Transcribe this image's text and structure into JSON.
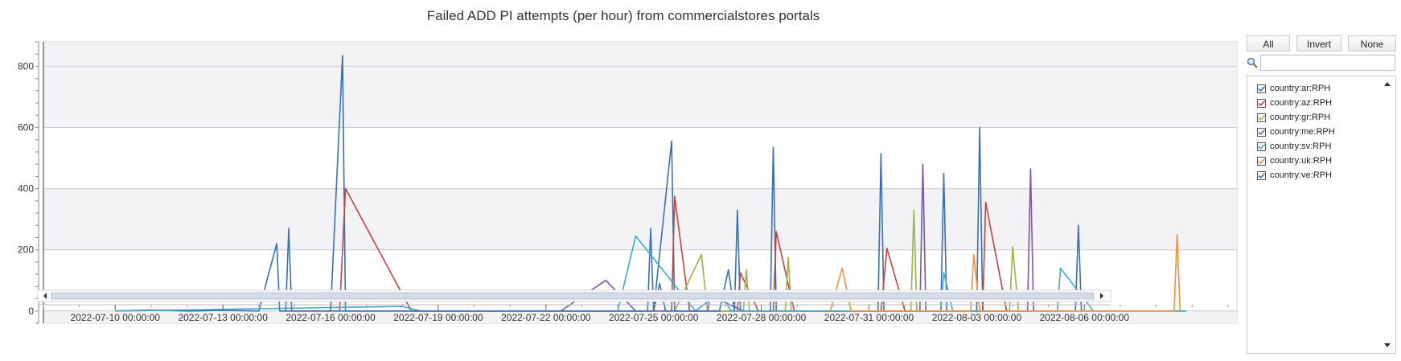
{
  "chart_data": {
    "type": "line",
    "title": "Failed ADD PI attempts (per hour) from commercialstores portals",
    "xlabel": "",
    "ylabel": "",
    "ylim": [
      -40,
      880
    ],
    "y_ticks": [
      0,
      200,
      400,
      600,
      800
    ],
    "x_range": [
      "2022-07-08 00:00:00",
      "2022-08-10 06:00:00"
    ],
    "x_tick_labels": [
      "2022-07-10 00:00:00",
      "2022-07-13 00:00:00",
      "2022-07-16 00:00:00",
      "2022-07-19 00:00:00",
      "2022-07-22 00:00:00",
      "2022-07-25 00:00:00",
      "2022-07-28 00:00:00",
      "2022-07-31 00:00:00",
      "2022-08-03 00:00:00",
      "2022-08-06 00:00:00"
    ],
    "grid": true,
    "legend_position": "right",
    "series": [
      {
        "name": "country:ar:RPH",
        "color": "#3a6fb4",
        "points": [
          [
            "2022-07-10 00:00",
            0
          ],
          [
            "2022-07-11 00:00",
            3
          ],
          [
            "2022-07-12 00:00",
            0
          ],
          [
            "2022-07-13 00:00",
            2
          ],
          [
            "2022-07-14 00:00",
            0
          ],
          [
            "2022-07-14 12:00",
            220
          ],
          [
            "2022-07-14 14:00",
            0
          ],
          [
            "2022-07-16 00:00",
            0
          ],
          [
            "2022-07-16 08:00",
            835
          ],
          [
            "2022-07-16 10:00",
            0
          ],
          [
            "2022-07-24 20:00",
            0
          ],
          [
            "2022-07-24 22:00",
            270
          ],
          [
            "2022-07-25 00:00",
            0
          ],
          [
            "2022-07-25 12:00",
            555
          ],
          [
            "2022-07-25 14:00",
            0
          ],
          [
            "2022-07-27 06:00",
            0
          ],
          [
            "2022-07-27 08:00",
            330
          ],
          [
            "2022-07-27 10:00",
            0
          ],
          [
            "2022-07-28 06:00",
            0
          ],
          [
            "2022-07-28 08:00",
            535
          ],
          [
            "2022-07-28 10:00",
            0
          ],
          [
            "2022-07-31 06:00",
            0
          ],
          [
            "2022-07-31 08:00",
            515
          ],
          [
            "2022-07-31 10:00",
            0
          ],
          [
            "2022-08-02 00:00",
            0
          ],
          [
            "2022-08-02 02:00",
            450
          ],
          [
            "2022-08-02 04:00",
            0
          ],
          [
            "2022-08-03 00:00",
            0
          ],
          [
            "2022-08-03 02:00",
            600
          ],
          [
            "2022-08-03 04:00",
            0
          ],
          [
            "2022-08-05 18:00",
            0
          ],
          [
            "2022-08-05 20:00",
            280
          ],
          [
            "2022-08-05 22:00",
            0
          ],
          [
            "2022-08-08 20:00",
            0
          ]
        ]
      },
      {
        "name": "country:az:RPH",
        "color": "#c9403f",
        "points": [
          [
            "2022-07-16 06:00",
            0
          ],
          [
            "2022-07-16 10:00",
            400
          ],
          [
            "2022-07-18 06:00",
            0
          ],
          [
            "2022-07-25 12:00",
            0
          ],
          [
            "2022-07-25 14:00",
            375
          ],
          [
            "2022-07-26 00:00",
            0
          ],
          [
            "2022-07-27 08:00",
            0
          ],
          [
            "2022-07-27 10:00",
            125
          ],
          [
            "2022-07-27 22:00",
            0
          ],
          [
            "2022-07-28 08:00",
            0
          ],
          [
            "2022-07-28 10:00",
            260
          ],
          [
            "2022-07-28 22:00",
            0
          ],
          [
            "2022-07-31 08:00",
            0
          ],
          [
            "2022-07-31 12:00",
            205
          ],
          [
            "2022-08-01 00:00",
            0
          ],
          [
            "2022-08-03 04:00",
            0
          ],
          [
            "2022-08-03 06:00",
            355
          ],
          [
            "2022-08-03 20:00",
            0
          ]
        ]
      },
      {
        "name": "country:gr:RPH",
        "color": "#93b54a",
        "points": [
          [
            "2022-07-25 14:00",
            0
          ],
          [
            "2022-07-26 08:00",
            185
          ],
          [
            "2022-07-26 12:00",
            0
          ],
          [
            "2022-07-27 12:00",
            0
          ],
          [
            "2022-07-27 14:00",
            135
          ],
          [
            "2022-07-27 16:00",
            0
          ],
          [
            "2022-07-28 16:00",
            0
          ],
          [
            "2022-07-28 18:00",
            175
          ],
          [
            "2022-07-28 20:00",
            0
          ],
          [
            "2022-08-01 04:00",
            0
          ],
          [
            "2022-08-01 06:00",
            330
          ],
          [
            "2022-08-01 08:00",
            0
          ],
          [
            "2022-08-03 22:00",
            0
          ],
          [
            "2022-08-04 00:00",
            210
          ],
          [
            "2022-08-04 04:00",
            0
          ]
        ]
      },
      {
        "name": "country:me:RPH",
        "color": "#7b57a5",
        "points": [
          [
            "2022-07-22 10:00",
            0
          ],
          [
            "2022-07-23 16:00",
            100
          ],
          [
            "2022-07-24 12:00",
            0
          ],
          [
            "2022-07-26 12:00",
            0
          ],
          [
            "2022-07-26 14:00",
            50
          ],
          [
            "2022-07-27 12:00",
            0
          ],
          [
            "2022-08-01 10:00",
            0
          ],
          [
            "2022-08-01 12:00",
            480
          ],
          [
            "2022-08-01 14:00",
            0
          ],
          [
            "2022-08-04 10:00",
            0
          ],
          [
            "2022-08-04 12:00",
            465
          ],
          [
            "2022-08-04 14:00",
            0
          ]
        ]
      },
      {
        "name": "country:sv:RPH",
        "color": "#3fa9c9",
        "points": [
          [
            "2022-07-10 00:00",
            0
          ],
          [
            "2022-07-18 00:00",
            15
          ],
          [
            "2022-07-18 12:00",
            0
          ],
          [
            "2022-07-24 00:00",
            0
          ],
          [
            "2022-07-24 12:00",
            245
          ],
          [
            "2022-07-26 04:00",
            0
          ],
          [
            "2022-07-26 20:00",
            60
          ],
          [
            "2022-07-27 04:00",
            0
          ],
          [
            "2022-08-02 00:00",
            0
          ],
          [
            "2022-08-02 02:00",
            125
          ],
          [
            "2022-08-02 08:00",
            0
          ],
          [
            "2022-08-05 06:00",
            0
          ],
          [
            "2022-08-05 08:00",
            140
          ],
          [
            "2022-08-06 06:00",
            0
          ],
          [
            "2022-08-08 20:00",
            0
          ]
        ]
      },
      {
        "name": "country:uk:RPH",
        "color": "#f0913d",
        "points": [
          [
            "2022-07-29 22:00",
            0
          ],
          [
            "2022-07-30 06:00",
            140
          ],
          [
            "2022-07-30 12:00",
            0
          ],
          [
            "2022-08-02 20:00",
            0
          ],
          [
            "2022-08-02 22:00",
            185
          ],
          [
            "2022-08-03 02:00",
            0
          ],
          [
            "2022-08-08 12:00",
            0
          ],
          [
            "2022-08-08 14:00",
            250
          ],
          [
            "2022-08-08 16:00",
            0
          ]
        ]
      },
      {
        "name": "country:ve:RPH",
        "color": "#3a6fb4",
        "points": [
          [
            "2022-07-14 18:00",
            0
          ],
          [
            "2022-07-14 20:00",
            270
          ],
          [
            "2022-07-14 22:00",
            0
          ],
          [
            "2022-07-25 00:00",
            0
          ],
          [
            "2022-07-25 04:00",
            90
          ],
          [
            "2022-07-25 08:00",
            0
          ],
          [
            "2022-07-26 20:00",
            0
          ],
          [
            "2022-07-27 02:00",
            135
          ],
          [
            "2022-07-27 06:00",
            0
          ]
        ]
      }
    ]
  },
  "controls": {
    "all_label": "All",
    "invert_label": "Invert",
    "none_label": "None",
    "search_value": ""
  }
}
